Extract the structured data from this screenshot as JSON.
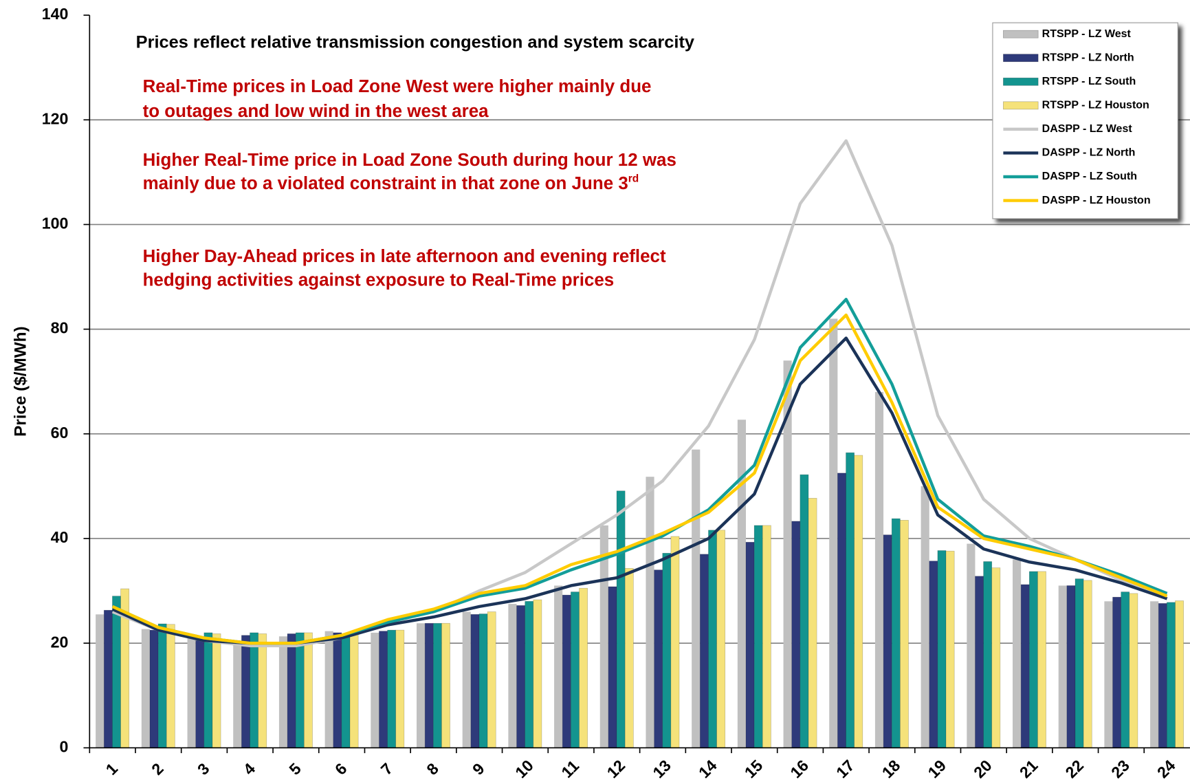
{
  "chart_data": {
    "type": "bar",
    "ylabel": "Price ($/MWh)",
    "subtitle": "Prices reflect relative transmission congestion and system scarcity",
    "annotations": [
      [
        "Real-Time prices in Load Zone West  were higher  mainly due",
        "to outages and low wind in the west area"
      ],
      [
        "Higher Real-Time price in Load Zone South during hour 12 was",
        "mainly due to a violated constraint in that zone on June 3"
      ],
      [
        "Higher Day-Ahead prices in late afternoon and evening reflect",
        "hedging activities against exposure to Real-Time prices"
      ]
    ],
    "annotation_superscript": "rd",
    "categories": [
      "1",
      "2",
      "3",
      "4",
      "5",
      "6",
      "7",
      "8",
      "9",
      "10",
      "11",
      "12",
      "13",
      "14",
      "15",
      "16",
      "17",
      "18",
      "19",
      "20",
      "21",
      "22",
      "23",
      "24"
    ],
    "series": [
      {
        "name": "RTSPP - LZ West",
        "type": "bar",
        "color": "#c0c0c0",
        "values": [
          25.5,
          22.7,
          21,
          20.5,
          21.3,
          22.3,
          22,
          23.8,
          26,
          27.5,
          31,
          42.5,
          51.8,
          57,
          62.7,
          74,
          82,
          68,
          50,
          39,
          36,
          31,
          28,
          28
        ]
      },
      {
        "name": "RTSPP - LZ North",
        "type": "bar",
        "color": "#2e3a7a",
        "values": [
          26.3,
          22.5,
          20.5,
          21.5,
          21.8,
          22,
          22.3,
          23.8,
          25.5,
          27.2,
          29.2,
          30.8,
          34,
          37,
          39.3,
          43.3,
          52.5,
          40.7,
          35.7,
          32.8,
          31.2,
          31,
          28.8,
          27.6
        ]
      },
      {
        "name": "RTSPP - LZ South",
        "type": "bar",
        "color": "#13948f",
        "values": [
          29,
          23.7,
          22,
          22,
          22,
          21.8,
          22.5,
          23.8,
          25.6,
          28,
          29.8,
          49.1,
          37.2,
          41.6,
          42.5,
          52.2,
          56.4,
          43.8,
          37.7,
          35.6,
          33.7,
          32.3,
          29.8,
          27.8
        ]
      },
      {
        "name": "RTSPP - LZ Houston",
        "type": "bar",
        "color": "#f5e27a",
        "values": [
          30.4,
          23.6,
          21.8,
          21.8,
          22,
          22,
          22.5,
          23.8,
          26,
          28.3,
          30.5,
          34.3,
          40.4,
          41.6,
          42.5,
          47.7,
          55.9,
          43.5,
          37.6,
          34.4,
          33.7,
          32,
          29.5,
          28.1
        ]
      },
      {
        "name": "DASPP - LZ West",
        "type": "line",
        "color": "#c8c8c8",
        "values": [
          26,
          22.5,
          20.5,
          19.5,
          19.5,
          21,
          24,
          26,
          30,
          33.5,
          39,
          44.5,
          51,
          61.5,
          78,
          104,
          116,
          96,
          63.5,
          47.5,
          40,
          36,
          32,
          28.5
        ]
      },
      {
        "name": "DASPP - LZ North",
        "type": "line",
        "color": "#1b3358",
        "values": [
          26.5,
          22.5,
          20.5,
          20,
          20,
          21,
          23.5,
          25,
          27,
          28.5,
          31,
          32.5,
          36,
          40,
          48.5,
          69.5,
          78.3,
          64,
          44.5,
          38,
          35.5,
          34,
          31.5,
          28.5
        ]
      },
      {
        "name": "DASPP - LZ South",
        "type": "line",
        "color": "#139e99",
        "values": [
          27,
          23,
          21,
          20,
          20,
          21.5,
          24,
          26,
          29,
          30.5,
          34,
          37,
          40.5,
          45.5,
          54,
          76.5,
          85.7,
          69.5,
          47.5,
          40.5,
          38.5,
          36,
          33,
          29.5
        ]
      },
      {
        "name": "DASPP - LZ Houston",
        "type": "line",
        "color": "#ffcc00",
        "values": [
          27,
          23,
          21,
          20,
          20,
          21.5,
          24.5,
          26.5,
          29.5,
          31,
          35,
          37.5,
          41,
          45,
          52.5,
          74,
          82.7,
          66,
          46,
          40,
          38,
          36,
          32.5,
          29
        ]
      }
    ],
    "ylim": [
      0,
      140
    ],
    "yticks": [
      0,
      20,
      40,
      60,
      80,
      100,
      120,
      140
    ],
    "grid": true,
    "legend": "upper right"
  }
}
